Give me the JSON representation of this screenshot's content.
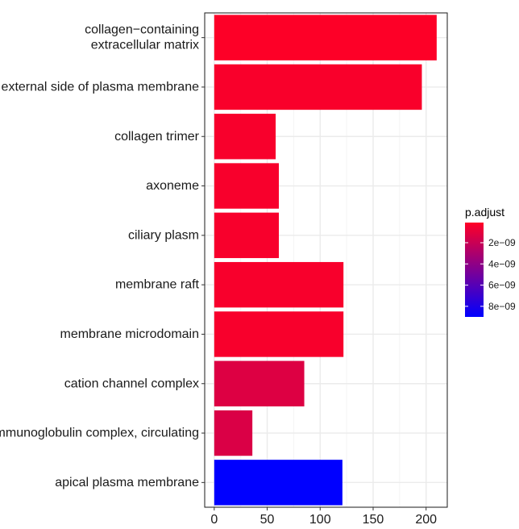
{
  "chart_data": {
    "type": "bar",
    "orientation": "horizontal",
    "categories": [
      "collagen−containing\nextracellular matrix",
      "external side of plasma membrane",
      "collagen trimer",
      "axoneme",
      "ciliary plasm",
      "membrane raft",
      "membrane microdomain",
      "cation channel complex",
      "immunoglobulin complex, circulating",
      "apical plasma membrane"
    ],
    "values": [
      210,
      196,
      58,
      61,
      61,
      122,
      122,
      85,
      36,
      121
    ],
    "p_adjust": [
      1.6e-10,
      3e-10,
      3.5e-10,
      3.5e-10,
      3.5e-10,
      3.5e-10,
      3.5e-10,
      1.3e-09,
      1.4e-09,
      9e-09
    ],
    "x_ticks": [
      0,
      50,
      100,
      150,
      200
    ],
    "x_tick_labels": [
      "0",
      "50",
      "100",
      "150",
      "200"
    ],
    "xlim": [
      -9,
      220
    ],
    "grid": true,
    "legend": {
      "title": "p.adjust",
      "position": "right",
      "ticks": [
        2e-09,
        4e-09,
        6e-09,
        8e-09
      ],
      "tick_labels": [
        "2e−09",
        "4e−09",
        "6e−09",
        "8e−09"
      ],
      "range": [
        1e-10,
        9e-09
      ],
      "low_color": "#ff0026",
      "high_color": "#0000ff"
    },
    "colors": {
      "panel_border": "#1a1a1a",
      "grid_major": "#ebebeb",
      "grid_minor": "#f4f4f4"
    }
  }
}
